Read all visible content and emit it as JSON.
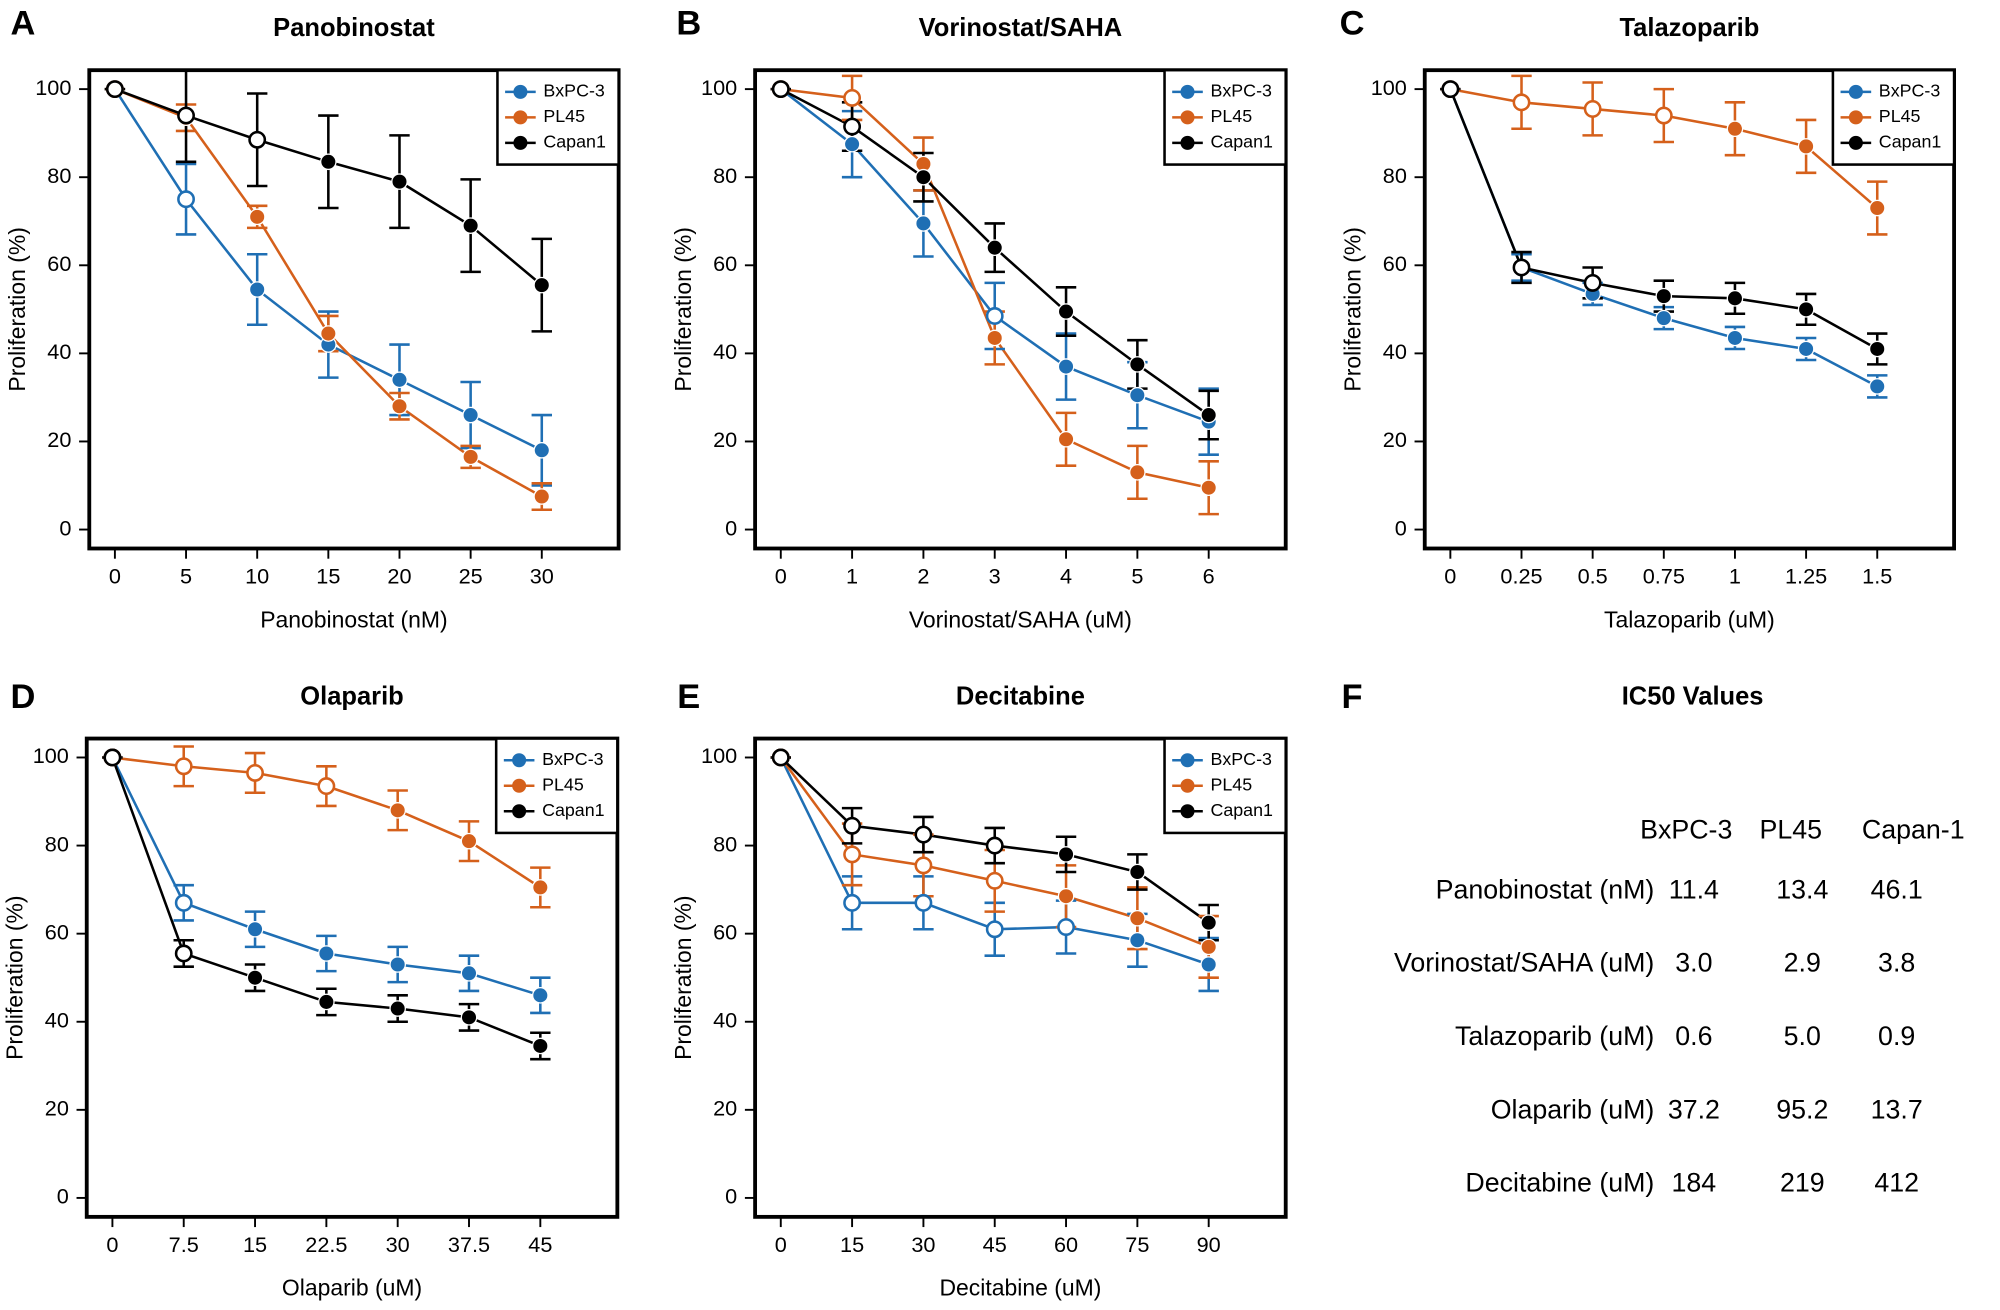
{
  "chart_data": [
    {
      "type": "line",
      "panel_label": "A",
      "title": "Panobinostat",
      "x_label": "Panobinostat (nM)",
      "y_label": "Proliferation (%)",
      "x": [
        0,
        5,
        10,
        15,
        20,
        25,
        30
      ],
      "xlim": [
        -1.8,
        35.4
      ],
      "xticks": [
        0,
        5,
        10,
        15,
        20,
        25,
        30
      ],
      "ylim": [
        -4.3,
        104.3
      ],
      "yticks": [
        0,
        20,
        40,
        60,
        80,
        100
      ],
      "legend": "upper right",
      "series": [
        {
          "name": "BxPC-3",
          "color": "#1f6fb4",
          "values": [
            100,
            75,
            54.5,
            42,
            34,
            26,
            18
          ],
          "errors": [
            0,
            8,
            8,
            7.5,
            8,
            7.5,
            8
          ],
          "hollow": [
            true,
            true,
            false,
            false,
            false,
            false,
            false
          ]
        },
        {
          "name": "PL45",
          "color": "#d5601b",
          "values": [
            100,
            93.5,
            71,
            44.5,
            28,
            16.5,
            7.5
          ],
          "errors": [
            0,
            3,
            2.5,
            4,
            3,
            2.5,
            3
          ],
          "hollow": [
            true,
            false,
            false,
            false,
            false,
            false,
            false
          ]
        },
        {
          "name": "Capan1",
          "color": "#000000",
          "values": [
            100,
            94,
            88.5,
            83.5,
            79,
            69,
            55.5
          ],
          "errors": [
            0,
            10.5,
            10.5,
            10.5,
            10.5,
            10.5,
            10.5
          ],
          "hollow": [
            true,
            true,
            true,
            false,
            false,
            false,
            false
          ]
        }
      ]
    },
    {
      "type": "line",
      "panel_label": "B",
      "title": "Vorinostat/SAHA",
      "x_label": "Vorinostat/SAHA (uM)",
      "y_label": "Proliferation (%)",
      "x": [
        0,
        1,
        2,
        3,
        4,
        5,
        6
      ],
      "xlim": [
        -0.36,
        7.08
      ],
      "xticks": [
        0,
        1,
        2,
        3,
        4,
        5,
        6
      ],
      "ylim": [
        -4.3,
        104.3
      ],
      "yticks": [
        0,
        20,
        40,
        60,
        80,
        100
      ],
      "legend": "upper right",
      "series": [
        {
          "name": "BxPC-3",
          "color": "#1f6fb4",
          "values": [
            100,
            87.5,
            69.5,
            48.5,
            37,
            30.5,
            24.5
          ],
          "errors": [
            0,
            7.5,
            7.5,
            7.5,
            7.5,
            7.5,
            7.5
          ],
          "hollow": [
            true,
            false,
            false,
            true,
            false,
            false,
            false
          ]
        },
        {
          "name": "PL45",
          "color": "#d5601b",
          "values": [
            100,
            98,
            83,
            43.5,
            20.5,
            13,
            9.5
          ],
          "errors": [
            0,
            5,
            6,
            6,
            6,
            6,
            6
          ],
          "hollow": [
            true,
            true,
            false,
            false,
            false,
            false,
            false
          ]
        },
        {
          "name": "Capan1",
          "color": "#000000",
          "values": [
            100,
            91.5,
            80,
            64,
            49.5,
            37.5,
            26
          ],
          "errors": [
            0,
            5.5,
            5.5,
            5.5,
            5.5,
            5.5,
            5.5
          ],
          "hollow": [
            true,
            true,
            false,
            false,
            false,
            false,
            false
          ]
        }
      ]
    },
    {
      "type": "line",
      "panel_label": "C",
      "title": "Talazoparib",
      "x_label": "Talazoparib (uM)",
      "y_label": "Proliferation (%)",
      "x": [
        0,
        0.25,
        0.5,
        0.75,
        1,
        1.25,
        1.5
      ],
      "xlim": [
        -0.09,
        1.77
      ],
      "xticks": [
        0,
        0.25,
        0.5,
        0.75,
        1,
        1.25,
        1.5
      ],
      "ylim": [
        -4.3,
        104.3
      ],
      "yticks": [
        0,
        20,
        40,
        60,
        80,
        100
      ],
      "legend": "upper right",
      "series": [
        {
          "name": "BxPC-3",
          "color": "#1f6fb4",
          "values": [
            100,
            59.5,
            53.5,
            48,
            43.5,
            41,
            32.5
          ],
          "errors": [
            0,
            3,
            2.5,
            2.5,
            2.5,
            2.5,
            2.5
          ],
          "hollow": [
            true,
            false,
            false,
            false,
            false,
            false,
            false
          ]
        },
        {
          "name": "PL45",
          "color": "#d5601b",
          "values": [
            100,
            97,
            95.5,
            94,
            91,
            87,
            73
          ],
          "errors": [
            0,
            6,
            6,
            6,
            6,
            6,
            6
          ],
          "hollow": [
            true,
            true,
            true,
            true,
            false,
            false,
            false
          ]
        },
        {
          "name": "Capan1",
          "color": "#000000",
          "values": [
            100,
            59.5,
            56,
            53,
            52.5,
            50,
            41
          ],
          "errors": [
            0,
            3.5,
            3.5,
            3.5,
            3.5,
            3.5,
            3.5
          ],
          "hollow": [
            true,
            true,
            true,
            false,
            false,
            false,
            false
          ]
        }
      ]
    },
    {
      "type": "line",
      "panel_label": "D",
      "title": "Olaparib",
      "x_label": "Olaparib (uM)",
      "y_label": "Proliferation (%)",
      "x": [
        0,
        7.5,
        15,
        22.5,
        30,
        37.5,
        45
      ],
      "xlim": [
        -2.7,
        53.1
      ],
      "xticks": [
        0,
        7.5,
        15,
        22.5,
        30,
        37.5,
        45
      ],
      "ylim": [
        -4.3,
        104.3
      ],
      "yticks": [
        0,
        20,
        40,
        60,
        80,
        100
      ],
      "legend": "upper right",
      "series": [
        {
          "name": "BxPC-3",
          "color": "#1f6fb4",
          "values": [
            100,
            67,
            61,
            55.5,
            53,
            51,
            46
          ],
          "errors": [
            0,
            4,
            4,
            4,
            4,
            4,
            4
          ],
          "hollow": [
            true,
            true,
            false,
            false,
            false,
            false,
            false
          ]
        },
        {
          "name": "PL45",
          "color": "#d5601b",
          "values": [
            100,
            98,
            96.5,
            93.5,
            88,
            81,
            70.5
          ],
          "errors": [
            0,
            4.5,
            4.5,
            4.5,
            4.5,
            4.5,
            4.5
          ],
          "hollow": [
            true,
            true,
            true,
            true,
            false,
            false,
            false
          ]
        },
        {
          "name": "Capan1",
          "color": "#000000",
          "values": [
            100,
            55.5,
            50,
            44.5,
            43,
            41,
            34.5
          ],
          "errors": [
            0,
            3,
            3,
            3,
            3,
            3,
            3
          ],
          "hollow": [
            true,
            true,
            false,
            false,
            false,
            false,
            false
          ]
        }
      ]
    },
    {
      "type": "line",
      "panel_label": "E",
      "title": "Decitabine",
      "x_label": "Decitabine (uM)",
      "y_label": "Proliferation (%)",
      "x": [
        0,
        15,
        30,
        45,
        60,
        75,
        90
      ],
      "xlim": [
        -5.4,
        106.2
      ],
      "xticks": [
        0,
        15,
        30,
        45,
        60,
        75,
        90
      ],
      "ylim": [
        -4.3,
        104.3
      ],
      "yticks": [
        0,
        20,
        40,
        60,
        80,
        100
      ],
      "legend": "upper right",
      "series": [
        {
          "name": "BxPC-3",
          "color": "#1f6fb4",
          "values": [
            100,
            67,
            67,
            61,
            61.5,
            58.5,
            53
          ],
          "errors": [
            0,
            6,
            6,
            6,
            6,
            6,
            6
          ],
          "hollow": [
            true,
            true,
            true,
            true,
            true,
            false,
            false
          ]
        },
        {
          "name": "PL45",
          "color": "#d5601b",
          "values": [
            100,
            78,
            75.5,
            72,
            68.5,
            63.5,
            57
          ],
          "errors": [
            0,
            7,
            7,
            7,
            7,
            7,
            7
          ],
          "hollow": [
            true,
            true,
            true,
            true,
            false,
            false,
            false
          ]
        },
        {
          "name": "Capan1",
          "color": "#000000",
          "values": [
            100,
            84.5,
            82.5,
            80,
            78,
            74,
            62.5
          ],
          "errors": [
            0,
            4,
            4,
            4,
            4,
            4,
            4
          ],
          "hollow": [
            true,
            true,
            true,
            true,
            false,
            false,
            false
          ]
        }
      ]
    }
  ],
  "table": {
    "panel_label": "F",
    "title": "IC50 Values",
    "columns": [
      "BxPC-3",
      "PL45",
      "Capan-1"
    ],
    "rows": [
      [
        "Panobinostat (nM)",
        "11.4",
        "13.4",
        "46.1"
      ],
      [
        "Vorinostat/SAHA (uM)",
        "3.0",
        "2.9",
        "3.8"
      ],
      [
        "Talazoparib (uM)",
        "0.6",
        "5.0",
        "0.9"
      ],
      [
        "Olaparib (uM)",
        "37.2",
        "95.2",
        "13.7"
      ],
      [
        "Decitabine (uM)",
        "184",
        "219",
        "412"
      ]
    ]
  }
}
